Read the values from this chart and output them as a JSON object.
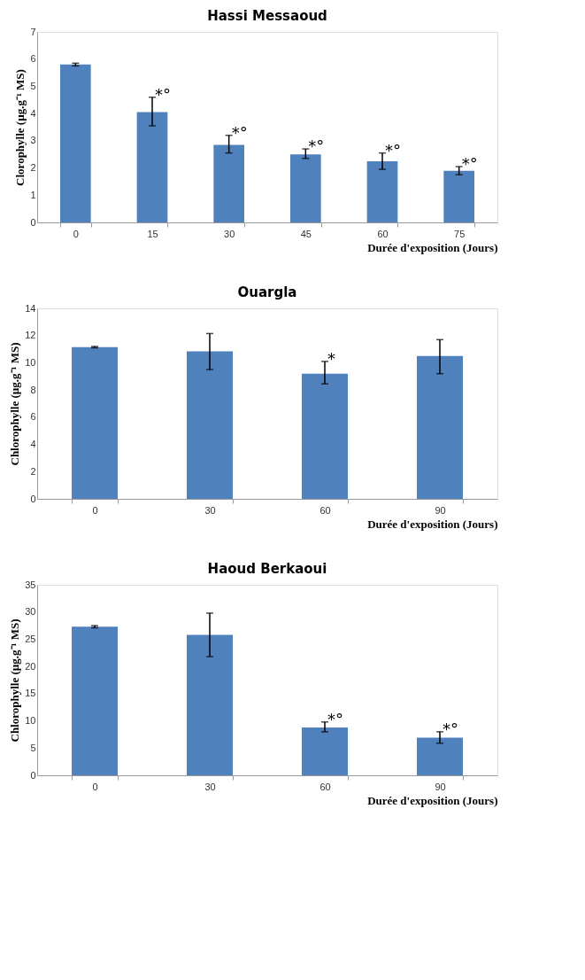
{
  "chart_data": [
    {
      "type": "bar",
      "title": "Hassi Messaoud",
      "xlabel": "Durée d'exposition (Jours)",
      "ylabel": "Clorophylle  (µg.g⁻¹ MS)",
      "categories": [
        "0",
        "15",
        "30",
        "45",
        "60",
        "75"
      ],
      "values": [
        5.8,
        4.05,
        2.85,
        2.5,
        2.25,
        1.9
      ],
      "color": "#4f81bd",
      "errors": [
        [
          5.75,
          5.85
        ],
        [
          3.55,
          4.6
        ],
        [
          2.55,
          3.2
        ],
        [
          2.35,
          2.7
        ],
        [
          1.95,
          2.55
        ],
        [
          1.75,
          2.05
        ]
      ],
      "ylim": [
        0,
        7
      ],
      "yticks": [
        0,
        1,
        2,
        3,
        4,
        5,
        6,
        7
      ],
      "grid": false,
      "annotations": [
        {
          "text": "*°",
          "x": "15",
          "y": 4.6
        },
        {
          "text": "*°",
          "x": "30",
          "y": 3.2
        },
        {
          "text": "*°",
          "x": "45",
          "y": 2.7
        },
        {
          "text": "*°",
          "x": "60",
          "y": 2.55
        },
        {
          "text": "*°",
          "x": "75",
          "y": 2.05
        }
      ]
    },
    {
      "type": "bar",
      "title": "Ouargla",
      "xlabel": "Durée d'exposition (Jours)",
      "ylabel": "Chlorophylle (µg.g⁻¹ MS)",
      "categories": [
        "0",
        "30",
        "60",
        "90"
      ],
      "values": [
        11.15,
        10.85,
        9.2,
        10.5
      ],
      "color": "#4f81bd",
      "errors": [
        [
          11.1,
          11.2
        ],
        [
          9.5,
          12.15
        ],
        [
          8.45,
          10.1
        ],
        [
          9.2,
          11.7
        ]
      ],
      "ylim": [
        0,
        14
      ],
      "yticks": [
        0,
        2,
        4,
        6,
        8,
        10,
        12,
        14
      ],
      "grid": false,
      "annotations": [
        {
          "text": "*",
          "x": "60",
          "y": 10.1
        }
      ]
    },
    {
      "type": "bar",
      "title": "Haoud Berkaoui",
      "xlabel": "Durée d'exposition (Jours)",
      "ylabel": "Chlorophylle (µg.g⁻¹ MS)",
      "categories": [
        "0",
        "30",
        "60",
        "90"
      ],
      "values": [
        27.3,
        25.8,
        8.8,
        6.9
      ],
      "color": "#4f81bd",
      "errors": [
        [
          27.1,
          27.5
        ],
        [
          21.8,
          29.8
        ],
        [
          8.0,
          9.8
        ],
        [
          5.9,
          8.0
        ]
      ],
      "ylim": [
        0,
        35
      ],
      "yticks": [
        0,
        5,
        10,
        15,
        20,
        25,
        30,
        35
      ],
      "grid": false,
      "annotations": [
        {
          "text": "*°",
          "x": "60",
          "y": 9.8
        },
        {
          "text": "*°",
          "x": "90",
          "y": 8.0
        }
      ]
    }
  ]
}
